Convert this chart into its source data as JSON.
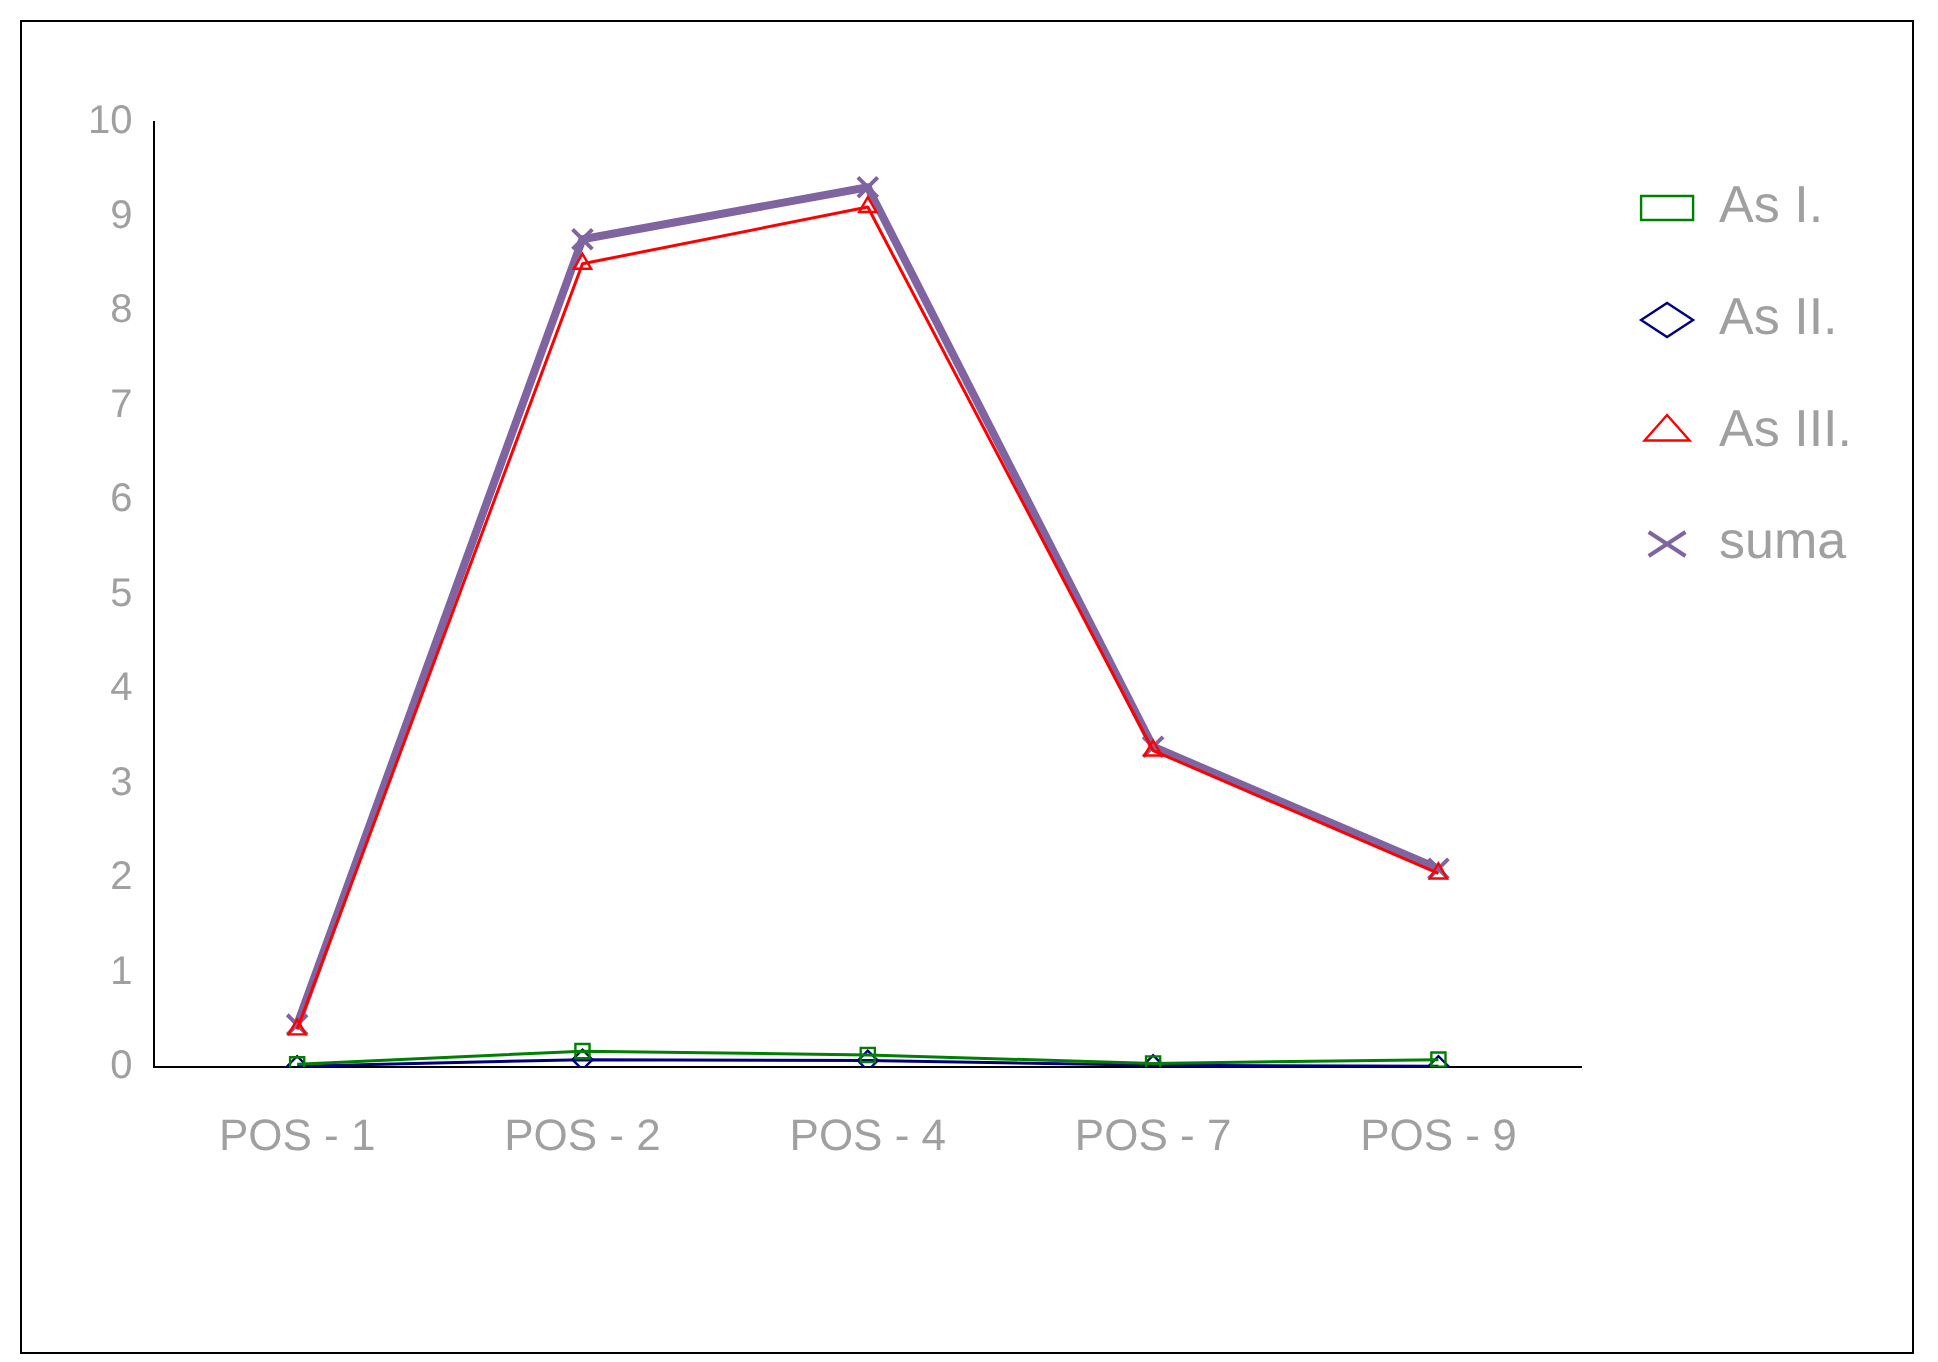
{
  "chart_data": {
    "type": "line",
    "categories": [
      "POS - 1",
      "POS - 2",
      "POS - 4",
      "POS - 7",
      "POS - 9"
    ],
    "series": [
      {
        "name": "As I.",
        "color": "#008000",
        "marker": "square",
        "values": [
          0.03,
          0.17,
          0.13,
          0.04,
          0.08
        ]
      },
      {
        "name": "As II.",
        "color": "#000080",
        "marker": "diamond",
        "values": [
          0.01,
          0.08,
          0.07,
          0.02,
          0.01
        ]
      },
      {
        "name": "As III.",
        "color": "#ff0000",
        "marker": "triangle",
        "values": [
          0.4,
          8.5,
          9.1,
          3.35,
          2.05
        ]
      },
      {
        "name": "suma",
        "color": "#8064a2",
        "marker": "cross",
        "values": [
          0.45,
          8.76,
          9.31,
          3.39,
          2.1
        ]
      }
    ],
    "ylim": [
      0,
      10
    ],
    "yticks": [
      0,
      1,
      2,
      3,
      4,
      5,
      6,
      7,
      8,
      9,
      10
    ],
    "grid": false,
    "legend": "right",
    "line_style": "solid"
  }
}
